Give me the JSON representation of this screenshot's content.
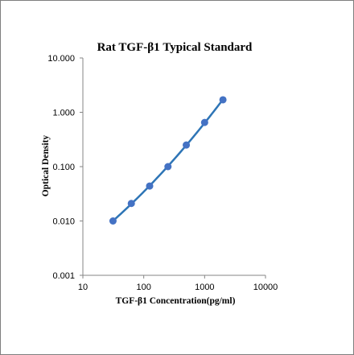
{
  "chart_data": {
    "type": "scatter",
    "title": "Rat TGF-β1 Typical Standard",
    "xlabel": "TGF-β1 Concentration(pg/ml)",
    "ylabel": "Optical Density",
    "x_scale": "log",
    "y_scale": "log",
    "xlim": [
      10,
      10000
    ],
    "ylim": [
      0.001,
      10
    ],
    "x_ticks": [
      "10",
      "100",
      "1000",
      "10000"
    ],
    "y_ticks": [
      "0.001",
      "0.010",
      "0.100",
      "1.000",
      "10.000"
    ],
    "grid": false,
    "marker_color": "#4472C4",
    "line_color": "#2E75B6",
    "series": [
      {
        "x": [
          31.25,
          62.5,
          125,
          250,
          500,
          1000,
          2000
        ],
        "y": [
          0.01,
          0.021,
          0.044,
          0.1,
          0.25,
          0.65,
          1.7
        ]
      }
    ]
  }
}
